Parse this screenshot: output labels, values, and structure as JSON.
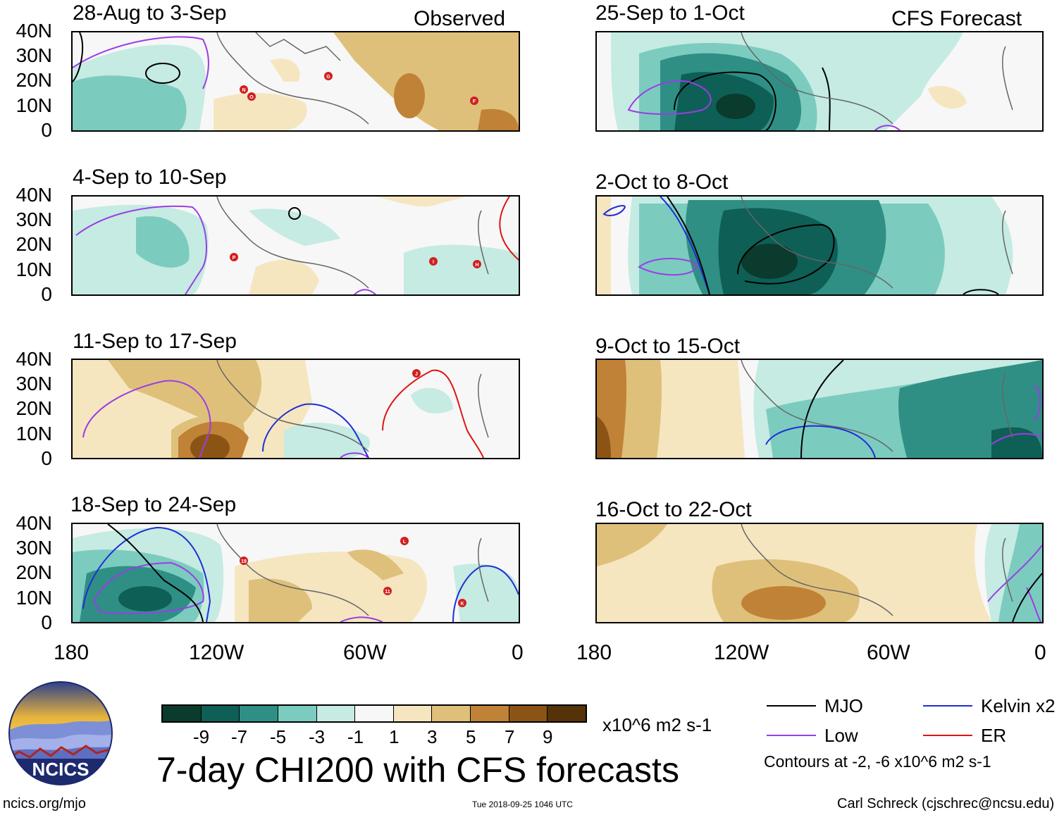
{
  "header": {
    "observed_label": "Observed",
    "forecast_label": "CFS Forecast"
  },
  "panels_observed": [
    {
      "title": "28-Aug to 3-Sep",
      "storms": [
        "N",
        "O",
        "G",
        "F"
      ]
    },
    {
      "title": "4-Sep to 10-Sep",
      "storms": [
        "P",
        "I",
        "H"
      ]
    },
    {
      "title": "11-Sep to 17-Sep",
      "storms": [
        "J"
      ]
    },
    {
      "title": "18-Sep to 24-Sep",
      "storms": [
        "19",
        "L",
        "11",
        "K"
      ]
    }
  ],
  "panels_forecast": [
    {
      "title": "25-Sep to 1-Oct"
    },
    {
      "title": "2-Oct to 8-Oct"
    },
    {
      "title": "9-Oct to 15-Oct"
    },
    {
      "title": "16-Oct to 22-Oct"
    }
  ],
  "latitude_labels": [
    "40N",
    "30N",
    "20N",
    "10N",
    "0"
  ],
  "longitude_labels": [
    "180",
    "120W",
    "60W",
    "0"
  ],
  "colorbar": {
    "colors": [
      "#0a3b2c",
      "#0e5f56",
      "#2f8f85",
      "#7ccbbf",
      "#c5ebe3",
      "#f7f7f7",
      "#f5e6c0",
      "#dfc07a",
      "#c08236",
      "#8c5414",
      "#553207"
    ],
    "tick_labels": [
      "-9",
      "-7",
      "-5",
      "-3",
      "-1",
      "1",
      "3",
      "5",
      "7",
      "9"
    ],
    "units": "x10^6 m2 s-1"
  },
  "title": "7-day CHI200 with CFS forecasts",
  "legend": {
    "items": [
      {
        "label": "MJO",
        "color": "#000000"
      },
      {
        "label": "Kelvin x2",
        "color": "#1f2fd6"
      },
      {
        "label": "Low",
        "color": "#9b3de6"
      },
      {
        "label": "ER",
        "color": "#e01515"
      }
    ],
    "note": "Contours at -2, -6 x10^6 m2 s-1"
  },
  "logo": {
    "text": "NCICS"
  },
  "footer": {
    "site": "ncics.org/mjo",
    "timestamp": "Tue 2018-09-25 1046 UTC",
    "author": "Carl Schreck (cjschrec@ncsu.edu)"
  }
}
